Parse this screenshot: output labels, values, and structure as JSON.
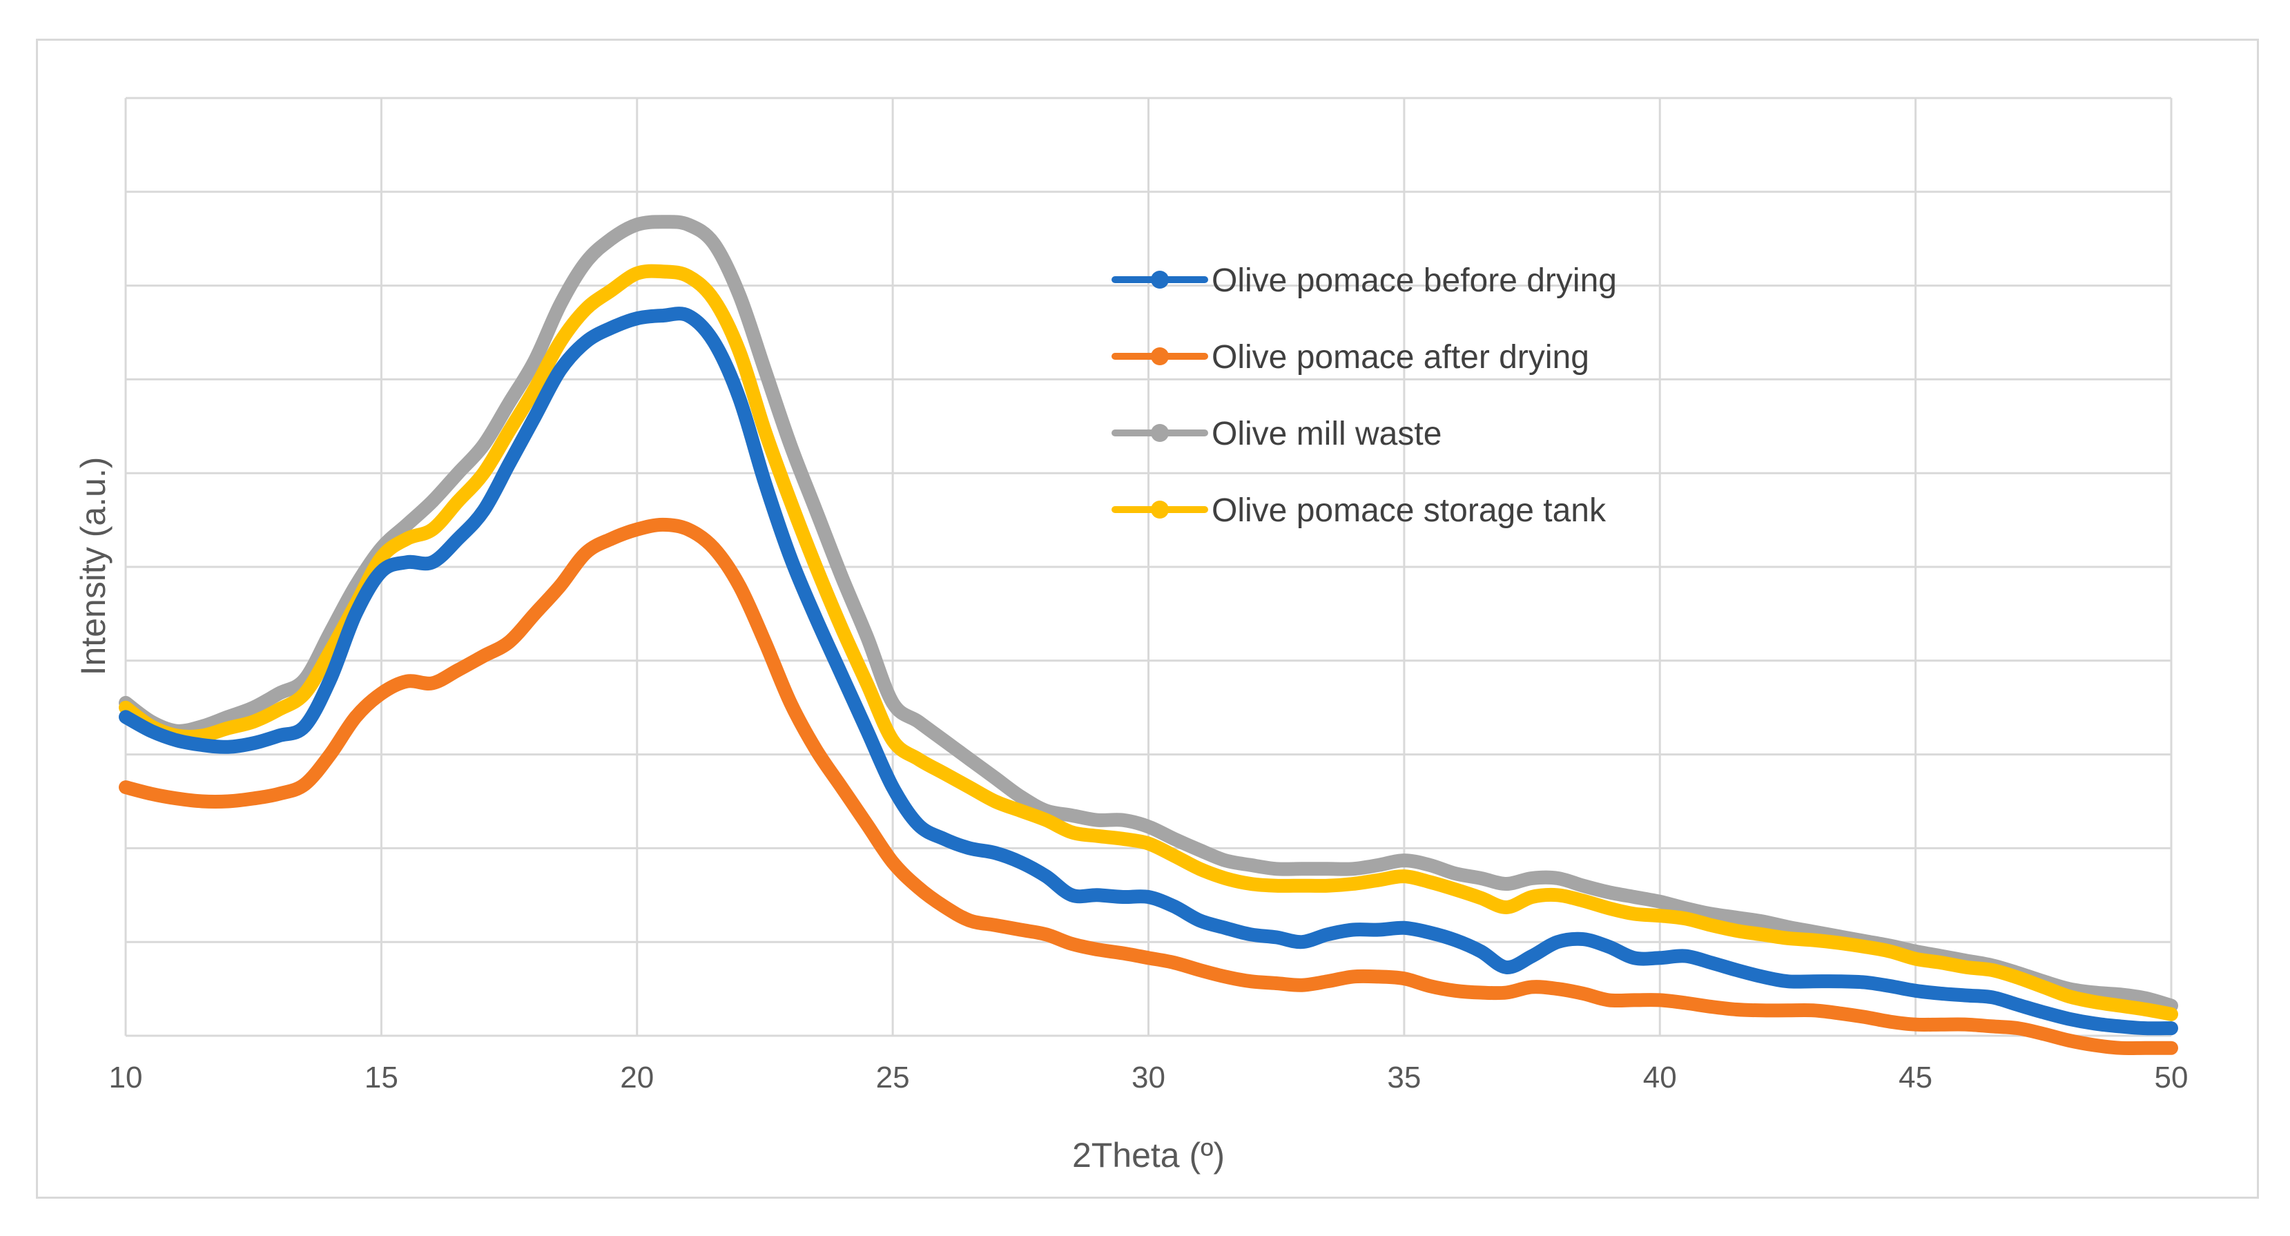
{
  "chart_data": {
    "type": "line",
    "title": "",
    "xlabel": "2Theta (º)",
    "ylabel": "Intensity (a.u.)",
    "xlim": [
      10,
      50
    ],
    "ylim": [
      0,
      100
    ],
    "xticks": [
      10,
      15,
      20,
      25,
      30,
      35,
      40,
      45,
      50
    ],
    "ytick_labels_shown": false,
    "grid": true,
    "legend_position": "upper-center-right",
    "series": [
      {
        "name": "Olive pomace before drying",
        "color": "#1f6fc5",
        "x": [
          10,
          10.5,
          11,
          11.5,
          12,
          12.5,
          13,
          13.5,
          14,
          14.5,
          15,
          15.5,
          16,
          16.5,
          17,
          17.5,
          18,
          18.5,
          19,
          19.5,
          20,
          20.5,
          21,
          21.5,
          22,
          22.5,
          23,
          23.5,
          24,
          24.5,
          25,
          25.5,
          26,
          26.5,
          27,
          27.5,
          28,
          28.5,
          29,
          29.5,
          30,
          30.5,
          31,
          31.5,
          32,
          32.5,
          33,
          33.5,
          34,
          34.5,
          35,
          35.5,
          36,
          36.5,
          37,
          37.5,
          38,
          38.5,
          39,
          39.5,
          40,
          40.5,
          41,
          41.5,
          42,
          42.5,
          43,
          43.5,
          44,
          44.5,
          45,
          45.5,
          46,
          46.5,
          47,
          47.5,
          48,
          48.5,
          49,
          49.5,
          50
        ],
        "y": [
          34,
          32.5,
          31.5,
          31,
          30.8,
          31.2,
          32,
          33,
          38,
          45,
          49.5,
          50.5,
          50.5,
          53,
          56,
          61,
          66,
          71,
          74,
          75.5,
          76.5,
          76.8,
          76.8,
          74,
          68,
          59,
          51,
          44.5,
          38.5,
          32.5,
          26.5,
          22.5,
          21,
          20,
          19.5,
          18.5,
          17,
          15,
          15,
          14.8,
          14.8,
          13.8,
          12.3,
          11.5,
          10.8,
          10.5,
          10,
          10.8,
          11.3,
          11.3,
          11.5,
          11,
          10.2,
          9,
          7.3,
          8.5,
          10,
          10.3,
          9.5,
          8.3,
          8.3,
          8.5,
          7.8,
          7,
          6.3,
          5.8,
          5.8,
          5.8,
          5.7,
          5.3,
          4.8,
          4.5,
          4.3,
          4.1,
          3.3,
          2.5,
          1.8,
          1.3,
          1,
          0.8,
          0.8
        ]
      },
      {
        "name": "Olive pomace after drying",
        "color": "#f47a20",
        "x": [
          10,
          10.5,
          11,
          11.5,
          12,
          12.5,
          13,
          13.5,
          14,
          14.5,
          15,
          15.5,
          16,
          16.5,
          17,
          17.5,
          18,
          18.5,
          19,
          19.5,
          20,
          20.5,
          21,
          21.5,
          22,
          22.5,
          23,
          23.5,
          24,
          24.5,
          25,
          25.5,
          26,
          26.5,
          27,
          27.5,
          28,
          28.5,
          29,
          29.5,
          30,
          30.5,
          31,
          31.5,
          32,
          32.5,
          33,
          33.5,
          34,
          34.5,
          35,
          35.5,
          36,
          36.5,
          37,
          37.5,
          38,
          38.5,
          39,
          39.5,
          40,
          40.5,
          41,
          41.5,
          42,
          42.5,
          43,
          43.5,
          44,
          44.5,
          45,
          45.5,
          46,
          46.5,
          47,
          47.5,
          48,
          48.5,
          49,
          49.5,
          50
        ],
        "y": [
          26.5,
          25.8,
          25.3,
          25,
          25,
          25.3,
          25.8,
          26.8,
          30,
          34,
          36.5,
          37.8,
          37.6,
          39,
          40.5,
          42,
          45,
          48,
          51.5,
          53,
          54,
          54.5,
          54,
          52,
          48,
          42,
          35.5,
          30.5,
          26.5,
          22.5,
          18.5,
          15.8,
          13.8,
          12.3,
          11.8,
          11.3,
          10.8,
          9.8,
          9.2,
          8.8,
          8.3,
          7.8,
          7,
          6.3,
          5.8,
          5.6,
          5.4,
          5.8,
          6.3,
          6.3,
          6.1,
          5.3,
          4.8,
          4.6,
          4.6,
          5.2,
          5,
          4.5,
          3.8,
          3.8,
          3.8,
          3.5,
          3.1,
          2.8,
          2.7,
          2.7,
          2.7,
          2.4,
          2,
          1.5,
          1.2,
          1.2,
          1.2,
          1,
          0.8,
          0.2,
          -0.5,
          -1,
          -1.3,
          -1.3,
          -1.3
        ]
      },
      {
        "name": "Olive mill waste",
        "color": "#a5a5a5",
        "x": [
          10,
          10.5,
          11,
          11.5,
          12,
          12.5,
          13,
          13.5,
          14,
          14.5,
          15,
          15.5,
          16,
          16.5,
          17,
          17.5,
          18,
          18.5,
          19,
          19.5,
          20,
          20.5,
          21,
          21.5,
          22,
          22.5,
          23,
          23.5,
          24,
          24.5,
          25,
          25.5,
          26,
          26.5,
          27,
          27.5,
          28,
          28.5,
          29,
          29.5,
          30,
          30.5,
          31,
          31.5,
          32,
          32.5,
          33,
          33.5,
          34,
          34.5,
          35,
          35.5,
          36,
          36.5,
          37,
          37.5,
          38,
          38.5,
          39,
          39.5,
          40,
          40.5,
          41,
          41.5,
          42,
          42.5,
          43,
          43.5,
          44,
          44.5,
          45,
          45.5,
          46,
          46.5,
          47,
          47.5,
          48,
          48.5,
          49,
          49.5,
          50
        ],
        "y": [
          35.5,
          33.5,
          32.5,
          33,
          34,
          35,
          36.5,
          38,
          43,
          48,
          52,
          54.5,
          57,
          60,
          63,
          67.5,
          72,
          78,
          82.5,
          85,
          86.5,
          86.8,
          86.5,
          84.5,
          79,
          71,
          63,
          56,
          49,
          42.5,
          35.5,
          33.5,
          31.5,
          29.5,
          27.5,
          25.5,
          24,
          23.5,
          23,
          23,
          22.3,
          21,
          19.8,
          18.7,
          18.2,
          17.8,
          17.8,
          17.8,
          17.8,
          18.2,
          18.7,
          18.2,
          17.3,
          16.8,
          16.2,
          16.8,
          16.8,
          16,
          15.3,
          14.8,
          14.3,
          13.6,
          13,
          12.6,
          12.2,
          11.6,
          11.1,
          10.6,
          10.1,
          9.6,
          9,
          8.5,
          8,
          7.5,
          6.7,
          5.8,
          5,
          4.6,
          4.4,
          4,
          3.2
        ]
      },
      {
        "name": "Olive pomace storage tank",
        "color": "#ffc000",
        "x": [
          10,
          10.5,
          11,
          11.5,
          12,
          12.5,
          13,
          13.5,
          14,
          14.5,
          15,
          15.5,
          16,
          16.5,
          17,
          17.5,
          18,
          18.5,
          19,
          19.5,
          20,
          20.5,
          21,
          21.5,
          22,
          22.5,
          23,
          23.5,
          24,
          24.5,
          25,
          25.5,
          26,
          26.5,
          27,
          27.5,
          28,
          28.5,
          29,
          29.5,
          30,
          30.5,
          31,
          31.5,
          32,
          32.5,
          33,
          33.5,
          34,
          34.5,
          35,
          35.5,
          36,
          36.5,
          37,
          37.5,
          38,
          38.5,
          39,
          39.5,
          40,
          40.5,
          41,
          41.5,
          42,
          42.5,
          43,
          43.5,
          44,
          44.5,
          45,
          45.5,
          46,
          46.5,
          47,
          47.5,
          48,
          48.5,
          49,
          49.5,
          50
        ],
        "y": [
          35,
          33,
          32,
          32,
          32.8,
          33.5,
          34.8,
          36.5,
          41,
          46,
          51,
          53,
          54,
          57,
          60,
          64.5,
          69,
          74,
          77.5,
          79.5,
          81.3,
          81.5,
          81,
          78.5,
          73,
          64.5,
          57,
          50,
          43.5,
          37.5,
          31.5,
          29.5,
          28,
          26.5,
          25,
          24,
          23,
          21.7,
          21.3,
          21,
          20.5,
          19.2,
          17.8,
          16.8,
          16.2,
          16,
          16,
          16,
          16.2,
          16.6,
          17,
          16.4,
          15.6,
          14.7,
          13.7,
          14.8,
          15,
          14.4,
          13.6,
          13,
          12.8,
          12.5,
          11.8,
          11.2,
          10.8,
          10.4,
          10.2,
          9.9,
          9.5,
          9,
          8.2,
          7.8,
          7.3,
          7,
          6.2,
          5.2,
          4.2,
          3.6,
          3.2,
          2.8,
          2.3
        ]
      }
    ]
  }
}
